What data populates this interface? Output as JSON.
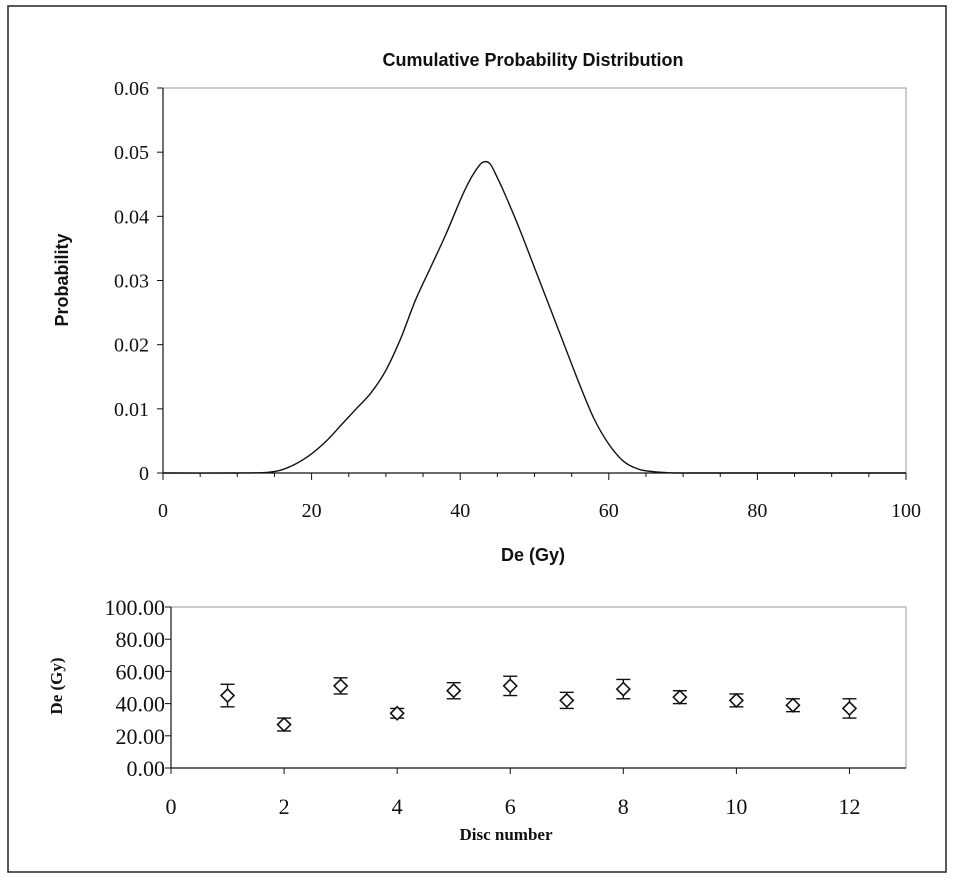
{
  "chart_data": [
    {
      "type": "line",
      "title": "Cumulative Probability Distribution",
      "xlabel": "De (Gy)",
      "ylabel": "Probability",
      "xlim": [
        0,
        100
      ],
      "ylim": [
        0,
        0.06
      ],
      "x_ticks": [
        "0",
        "20",
        "40",
        "60",
        "80",
        "100"
      ],
      "y_ticks": [
        "0",
        "0.01",
        "0.02",
        "0.03",
        "0.04",
        "0.05",
        "0.06"
      ],
      "grid": false,
      "legend": "none",
      "series": [
        {
          "x": [
            0,
            10,
            14,
            16,
            18,
            20,
            22,
            24,
            26,
            28,
            30,
            32,
            34,
            36,
            38,
            40,
            41,
            42,
            43,
            44,
            45,
            46,
            48,
            50,
            52,
            54,
            56,
            58,
            60,
            62,
            64,
            66,
            68,
            70,
            80,
            100
          ],
          "y": [
            0,
            0,
            0.0001,
            0.0005,
            0.0015,
            0.003,
            0.005,
            0.0075,
            0.01,
            0.0125,
            0.016,
            0.021,
            0.027,
            0.032,
            0.037,
            0.0425,
            0.045,
            0.047,
            0.0484,
            0.0482,
            0.046,
            0.0435,
            0.038,
            0.032,
            0.026,
            0.02,
            0.014,
            0.0085,
            0.0045,
            0.0018,
            0.0006,
            0.0002,
            5e-05,
            0,
            0,
            0
          ]
        }
      ]
    },
    {
      "type": "scatter",
      "title": "",
      "xlabel": "Disc number",
      "ylabel": "De (Gy)",
      "xlim": [
        0,
        13
      ],
      "ylim": [
        0,
        100
      ],
      "x_ticks": [
        "0",
        "2",
        "4",
        "6",
        "8",
        "10",
        "12"
      ],
      "y_ticks": [
        "0.00",
        "20.00",
        "40.00",
        "60.00",
        "80.00",
        "100.00"
      ],
      "grid": false,
      "legend": "none",
      "marker": "open-diamond",
      "series": [
        {
          "x": [
            1,
            2,
            3,
            4,
            5,
            6,
            7,
            8,
            9,
            10,
            11,
            12
          ],
          "y": [
            45,
            27,
            51,
            34,
            48,
            51,
            42,
            49,
            44,
            42,
            39,
            37
          ],
          "error": [
            7,
            4,
            5,
            3,
            5,
            6,
            5,
            6,
            4,
            4,
            4,
            6
          ]
        }
      ]
    }
  ]
}
